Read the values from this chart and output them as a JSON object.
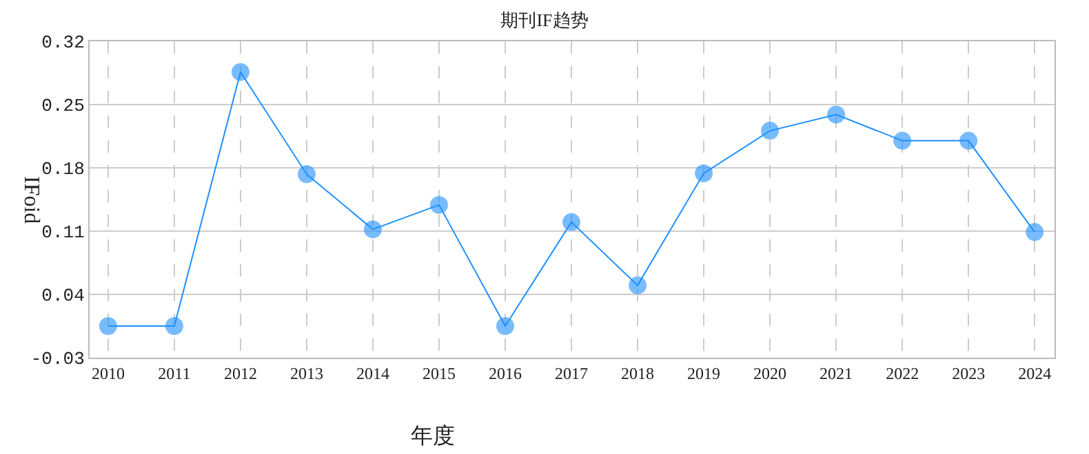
{
  "chart_data": {
    "type": "line",
    "title": "期刊IF趋势",
    "xlabel": "年度",
    "ylabel": "IFoid",
    "categories": [
      "2010",
      "2011",
      "2012",
      "2013",
      "2014",
      "2015",
      "2016",
      "2017",
      "2018",
      "2019",
      "2020",
      "2021",
      "2022",
      "2023",
      "2024"
    ],
    "series": [
      {
        "color": "#1e90ff",
        "values": [
          0.005,
          0.005,
          0.286,
          0.173,
          0.112,
          0.139,
          0.005,
          0.12,
          0.05,
          0.174,
          0.221,
          0.239,
          0.21,
          0.21,
          0.109
        ]
      }
    ],
    "ylim": [
      -0.03,
      0.32
    ],
    "yticks": [
      -0.03,
      0.04,
      0.11,
      0.18,
      0.25,
      0.32
    ],
    "grid": true,
    "marker": "circle",
    "line_style": "solid",
    "legend": false
  }
}
